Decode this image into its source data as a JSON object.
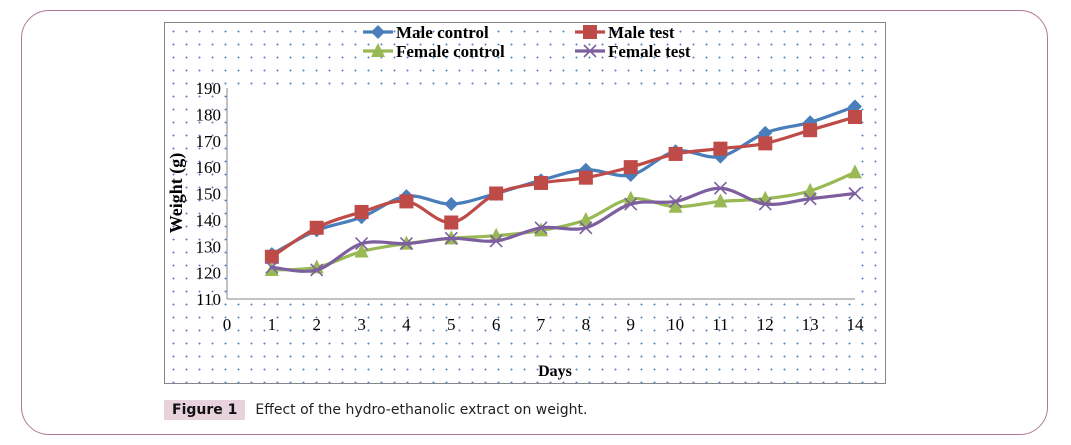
{
  "caption": {
    "label": "Figure 1",
    "text": "Effect of the hydro-ethanolic extract on weight."
  },
  "chart_data": {
    "type": "line",
    "title": "",
    "xlabel": "Days",
    "ylabel": "Weight  (g)",
    "x": [
      1,
      2,
      3,
      4,
      5,
      6,
      7,
      8,
      9,
      10,
      11,
      12,
      13,
      14
    ],
    "xlim": [
      0,
      14
    ],
    "ylim": [
      110,
      190
    ],
    "xticks": [
      "0",
      "1",
      "2",
      "3",
      "4",
      "5",
      "6",
      "7",
      "8",
      "9",
      "10",
      "11",
      "12",
      "13",
      "14"
    ],
    "yticks": [
      "110",
      "120",
      "130",
      "140",
      "150",
      "160",
      "170",
      "180",
      "190"
    ],
    "grid": false,
    "legend_position": "top-center",
    "smooth": true,
    "series": [
      {
        "name": "Male control",
        "color": "#4a7ebb",
        "marker": "diamond",
        "values": [
          127,
          136,
          141,
          149,
          146,
          150,
          155,
          159,
          157,
          166,
          164,
          173,
          177,
          183
        ]
      },
      {
        "name": "Male test",
        "color": "#be4b48",
        "marker": "square",
        "values": [
          126,
          137,
          143,
          147,
          139,
          150,
          154,
          156,
          160,
          165,
          167,
          169,
          174,
          179
        ]
      },
      {
        "name": "Female control",
        "color": "#98b954",
        "marker": "triangle",
        "values": [
          121,
          122,
          128,
          131,
          133,
          134,
          136,
          140,
          148,
          145,
          147,
          148,
          151,
          158
        ]
      },
      {
        "name": "Female test",
        "color": "#7d5fa0",
        "marker": "x",
        "values": [
          122,
          121,
          131,
          131,
          133,
          132,
          137,
          137,
          146,
          147,
          152,
          146,
          148,
          150
        ]
      }
    ]
  }
}
